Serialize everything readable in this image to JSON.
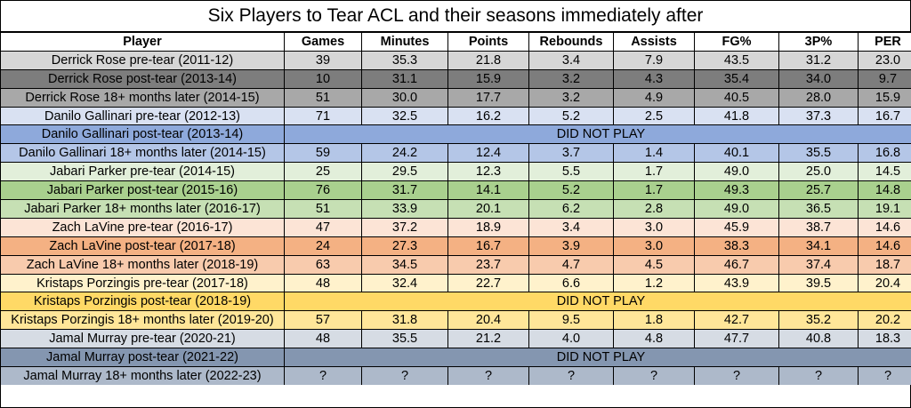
{
  "chart_data": {
    "type": "table",
    "title": "Six Players to Tear ACL and their seasons immediately after",
    "columns": [
      "Player",
      "Games",
      "Minutes",
      "Points",
      "Rebounds",
      "Assists",
      "FG%",
      "3P%",
      "PER"
    ],
    "rows": [
      {
        "player": "Derrick Rose pre-tear (2011-12)",
        "color": "#d6d6d6",
        "values": [
          "39",
          "35.3",
          "21.8",
          "3.4",
          "7.9",
          "43.5",
          "31.2",
          "23.0"
        ]
      },
      {
        "player": "Derrick Rose post-tear (2013-14)",
        "color": "#7d7d7d",
        "values": [
          "10",
          "31.1",
          "15.9",
          "3.2",
          "4.3",
          "35.4",
          "34.0",
          "9.7"
        ]
      },
      {
        "player": "Derrick Rose 18+ months later (2014-15)",
        "color": "#a8a8a8",
        "values": [
          "51",
          "30.0",
          "17.7",
          "3.2",
          "4.9",
          "40.5",
          "28.0",
          "15.9"
        ]
      },
      {
        "player": "Danilo Gallinari pre-tear (2012-13)",
        "color": "#d9e1f2",
        "values": [
          "71",
          "32.5",
          "16.2",
          "5.2",
          "2.5",
          "41.8",
          "37.3",
          "16.7"
        ]
      },
      {
        "player": "Danilo Gallinari post-tear (2013-14)",
        "color": "#8ea9db",
        "dnp": "DID NOT PLAY"
      },
      {
        "player": "Danilo Gallinari 18+ months later (2014-15)",
        "color": "#b4c6e7",
        "values": [
          "59",
          "24.2",
          "12.4",
          "3.7",
          "1.4",
          "40.1",
          "35.5",
          "16.8"
        ]
      },
      {
        "player": "Jabari Parker pre-tear (2014-15)",
        "color": "#e2efda",
        "values": [
          "25",
          "29.5",
          "12.3",
          "5.5",
          "1.7",
          "49.0",
          "25.0",
          "14.5"
        ]
      },
      {
        "player": "Jabari Parker post-tear (2015-16)",
        "color": "#a9d08e",
        "values": [
          "76",
          "31.7",
          "14.1",
          "5.2",
          "1.7",
          "49.3",
          "25.7",
          "14.8"
        ]
      },
      {
        "player": "Jabari Parker 18+ months later (2016-17)",
        "color": "#c6e0b4",
        "values": [
          "51",
          "33.9",
          "20.1",
          "6.2",
          "2.8",
          "49.0",
          "36.5",
          "19.1"
        ]
      },
      {
        "player": "Zach LaVine pre-tear (2016-17)",
        "color": "#fce4d6",
        "values": [
          "47",
          "37.2",
          "18.9",
          "3.4",
          "3.0",
          "45.9",
          "38.7",
          "14.6"
        ]
      },
      {
        "player": "Zach LaVine post-tear (2017-18)",
        "color": "#f4b183",
        "values": [
          "24",
          "27.3",
          "16.7",
          "3.9",
          "3.0",
          "38.3",
          "34.1",
          "14.6"
        ]
      },
      {
        "player": "Zach LaVine 18+ months later (2018-19)",
        "color": "#f8cbad",
        "values": [
          "63",
          "34.5",
          "23.7",
          "4.7",
          "4.5",
          "46.7",
          "37.4",
          "18.7"
        ]
      },
      {
        "player": "Kristaps Porzingis pre-tear (2017-18)",
        "color": "#fff2cc",
        "values": [
          "48",
          "32.4",
          "22.7",
          "6.6",
          "1.2",
          "43.9",
          "39.5",
          "20.4"
        ]
      },
      {
        "player": "Kristaps Porzingis post-tear (2018-19)",
        "color": "#ffd966",
        "dnp": "DID NOT PLAY"
      },
      {
        "player": "Kristaps Porzingis 18+ months later (2019-20)",
        "color": "#ffe699",
        "values": [
          "57",
          "31.8",
          "20.4",
          "9.5",
          "1.8",
          "42.7",
          "35.2",
          "20.2"
        ]
      },
      {
        "player": "Jamal Murray pre-tear (2020-21)",
        "color": "#d6dce4",
        "values": [
          "48",
          "35.5",
          "21.2",
          "4.0",
          "4.8",
          "47.7",
          "40.8",
          "18.3"
        ]
      },
      {
        "player": "Jamal Murray post-tear (2021-22)",
        "color": "#8496b0",
        "dnp": "DID NOT PLAY"
      },
      {
        "player": "Jamal Murray 18+ months later (2022-23)",
        "color": "#adb9ca",
        "values": [
          "?",
          "?",
          "?",
          "?",
          "?",
          "?",
          "?",
          "?"
        ]
      }
    ]
  }
}
